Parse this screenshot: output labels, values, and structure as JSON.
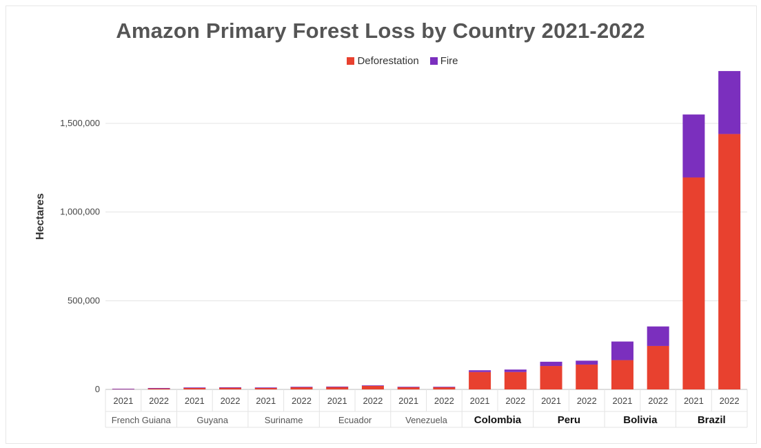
{
  "chart_data": {
    "type": "bar",
    "stacked": true,
    "title": "Amazon Primary Forest Loss by Country 2021-2022",
    "ylabel": "Hectares",
    "xlabel": "",
    "ylim": [
      0,
      1800000
    ],
    "yticks": [
      0,
      500000,
      1000000,
      1500000
    ],
    "ytick_labels": [
      "0",
      "500,000",
      "1,000,000",
      "1,500,000"
    ],
    "grid": true,
    "legend_position": "top",
    "colors": {
      "Deforestation": "#e8412f",
      "Fire": "#7b2fbe"
    },
    "groups": [
      {
        "country": "French Guiana",
        "bold": false,
        "years": [
          "2021",
          "2022"
        ]
      },
      {
        "country": "Guyana",
        "bold": false,
        "years": [
          "2021",
          "2022"
        ]
      },
      {
        "country": "Suriname",
        "bold": false,
        "years": [
          "2021",
          "2022"
        ]
      },
      {
        "country": "Ecuador",
        "bold": false,
        "years": [
          "2021",
          "2022"
        ]
      },
      {
        "country": "Venezuela",
        "bold": false,
        "years": [
          "2021",
          "2022"
        ]
      },
      {
        "country": "Colombia",
        "bold": true,
        "years": [
          "2021",
          "2022"
        ]
      },
      {
        "country": "Peru",
        "bold": true,
        "years": [
          "2021",
          "2022"
        ]
      },
      {
        "country": "Bolivia",
        "bold": true,
        "years": [
          "2021",
          "2022"
        ]
      },
      {
        "country": "Brazil",
        "bold": true,
        "years": [
          "2021",
          "2022"
        ]
      }
    ],
    "series": [
      {
        "name": "Deforestation",
        "values": [
          3000,
          6000,
          9000,
          10000,
          9000,
          13000,
          14000,
          20000,
          13000,
          13000,
          98000,
          98000,
          132000,
          140000,
          165000,
          245000,
          1195000,
          1440000
        ]
      },
      {
        "name": "Fire",
        "values": [
          1000,
          2000,
          2000,
          2000,
          2000,
          2000,
          2000,
          3000,
          2000,
          2000,
          10000,
          14000,
          24000,
          22000,
          105000,
          110000,
          355000,
          355000
        ]
      }
    ]
  }
}
